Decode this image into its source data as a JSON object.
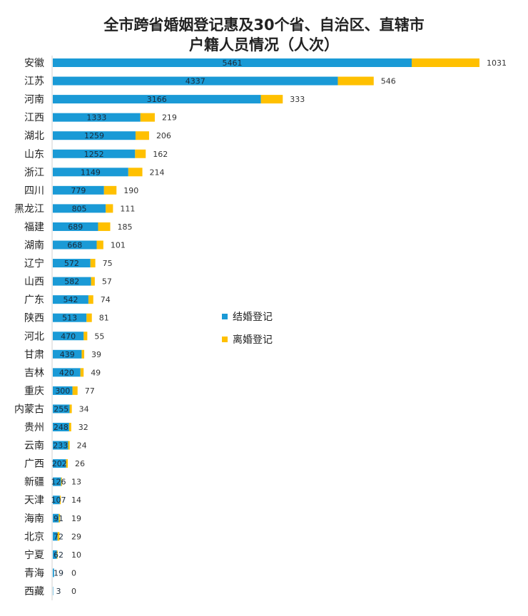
{
  "chart_data": {
    "type": "bar",
    "orientation": "horizontal",
    "stacked": true,
    "title": [
      "全市跨省婚姻登记惠及30个省、自治区、直辖市",
      "户籍人员情况（人次）"
    ],
    "categories": [
      "安徽",
      "江苏",
      "河南",
      "江西",
      "湖北",
      "山东",
      "浙江",
      "四川",
      "黑龙江",
      "福建",
      "湖南",
      "辽宁",
      "山西",
      "广东",
      "陕西",
      "河北",
      "甘肃",
      "吉林",
      "重庆",
      "内蒙古",
      "贵州",
      "云南",
      "广西",
      "新疆",
      "天津",
      "海南",
      "北京",
      "宁夏",
      "青海",
      "西藏"
    ],
    "series": [
      {
        "name": "结婚登记",
        "color": "#1a9ad6",
        "values": [
          5461,
          4337,
          3166,
          1333,
          1259,
          1252,
          1149,
          779,
          805,
          689,
          668,
          572,
          582,
          542,
          513,
          470,
          439,
          420,
          300,
          255,
          248,
          233,
          202,
          126,
          107,
          91,
          72,
          62,
          19,
          3
        ]
      },
      {
        "name": "离婚登记",
        "color": "#ffc000",
        "values": [
          1031,
          546,
          333,
          219,
          206,
          162,
          214,
          190,
          111,
          185,
          101,
          75,
          57,
          74,
          81,
          55,
          39,
          49,
          77,
          34,
          32,
          24,
          26,
          13,
          14,
          19,
          29,
          10,
          0,
          0
        ]
      }
    ],
    "legend_position": "right-middle",
    "grid": false
  }
}
